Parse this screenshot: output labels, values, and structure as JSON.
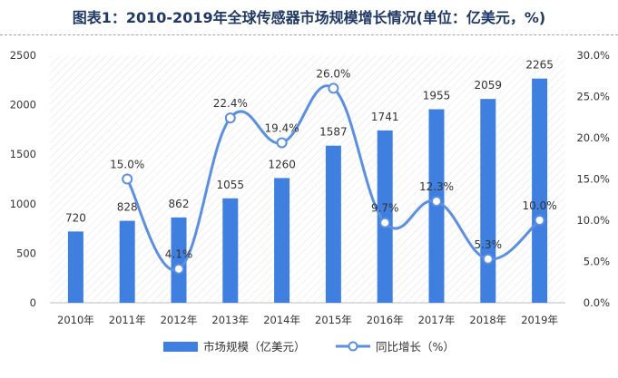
{
  "title": "图表1：2010-2019年全球传感器市场规模增长情况(单位：亿美元，%)",
  "colors": {
    "bar": "#3f7fe0",
    "line": "#5b8fe0",
    "marker_fill": "#ffffff",
    "grid": "#d0d0d0",
    "title": "#1f3864"
  },
  "chart_data": {
    "type": "bar",
    "title": "图表1：2010-2019年全球传感器市场规模增长情况(单位：亿美元，%)",
    "categories": [
      "2010年",
      "2011年",
      "2012年",
      "2013年",
      "2014年",
      "2015年",
      "2016年",
      "2017年",
      "2018年",
      "2019年"
    ],
    "series": [
      {
        "name": "市场规模（亿美元）",
        "type": "bar",
        "axis": "left",
        "values": [
          720,
          828,
          862,
          1055,
          1260,
          1587,
          1741,
          1955,
          2059,
          2265
        ],
        "labels": [
          "720",
          "828",
          "862",
          "1055",
          "1260",
          "1587",
          "1741",
          "1955",
          "2059",
          "2265"
        ]
      },
      {
        "name": "同比增长（%）",
        "type": "line",
        "axis": "right",
        "smooth": true,
        "values": [
          null,
          15.0,
          4.1,
          22.4,
          19.4,
          26.0,
          9.7,
          12.3,
          5.3,
          10.0
        ],
        "labels": [
          "",
          "15.0%",
          "4.1%",
          "22.4%",
          "19.4%",
          "26.0%",
          "9.7%",
          "12.3%",
          "5.3%",
          "10.0%"
        ]
      }
    ],
    "ylim_left": [
      0,
      2500
    ],
    "yticks_left": [
      "0",
      "500",
      "1000",
      "1500",
      "2000",
      "2500"
    ],
    "ylim_right": [
      0,
      30
    ],
    "yticks_right": [
      "0.0%",
      "5.0%",
      "10.0%",
      "15.0%",
      "20.0%",
      "25.0%",
      "30.0%"
    ],
    "grid": "diagonal hatch background",
    "legend_position": "bottom"
  }
}
